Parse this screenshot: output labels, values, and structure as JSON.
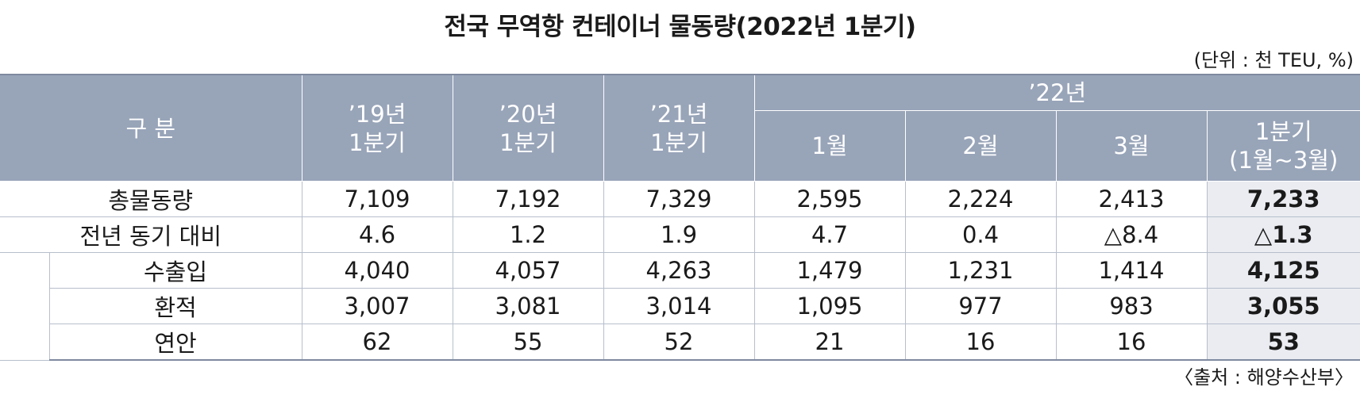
{
  "title": "전국 무역항 컨테이너 물동량(2022년 1분기)",
  "unit": "(단위 : 천 TEU, %)",
  "source": "〈출처 : 해양수산부〉",
  "header": {
    "category": "구 분",
    "y19": [
      "’19년",
      "1분기"
    ],
    "y20": [
      "’20년",
      "1분기"
    ],
    "y21": [
      "’21년",
      "1분기"
    ],
    "y22": "’22년",
    "m1": "1월",
    "m2": "2월",
    "m3": "3월",
    "q1": [
      "1분기",
      "(1월~3월)"
    ]
  },
  "chart_data": {
    "type": "table",
    "columns": [
      "’19년 1분기",
      "’20년 1분기",
      "’21년 1분기",
      "1월",
      "2월",
      "3월",
      "1분기(1월~3월)"
    ],
    "rows": [
      {
        "label": "총물동량",
        "values": [
          "7,109",
          "7,192",
          "7,329",
          "2,595",
          "2,224",
          "2,413",
          "7,233"
        ]
      },
      {
        "label": "전년 동기 대비",
        "values": [
          "4.6",
          "1.2",
          "1.9",
          "4.7",
          "0.4",
          "△8.4",
          "△1.3"
        ]
      },
      {
        "label": "수출입",
        "values": [
          "4,040",
          "4,057",
          "4,263",
          "1,479",
          "1,231",
          "1,414",
          "4,125"
        ]
      },
      {
        "label": "환적",
        "values": [
          "3,007",
          "3,081",
          "3,014",
          "1,095",
          "977",
          "983",
          "3,055"
        ]
      },
      {
        "label": "연안",
        "values": [
          "62",
          "55",
          "52",
          "21",
          "16",
          "16",
          "53"
        ]
      }
    ]
  }
}
